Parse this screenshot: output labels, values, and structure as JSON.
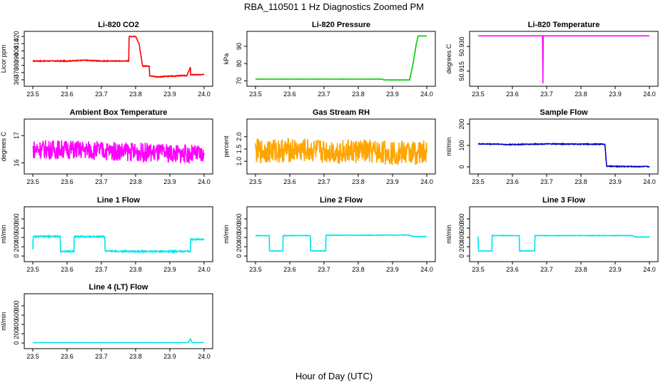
{
  "figure": {
    "title": "RBA_110501  1 Hz Diagnostics Zoomed PM",
    "xlabel": "Hour of Day (UTC)"
  },
  "chart_data": [
    {
      "type": "line",
      "title": "Li-820 CO2",
      "ylabel": "Licor ppm",
      "color": "#ff0000",
      "xlim": [
        23.5,
        24.0
      ],
      "ylim": [
        355,
        423
      ],
      "yticks": [
        360,
        370,
        380,
        390,
        400,
        410,
        420
      ],
      "xticks": [
        23.5,
        23.6,
        23.7,
        23.8,
        23.9,
        24.0
      ],
      "noise": 0.6,
      "x": [
        23.5,
        23.6,
        23.65,
        23.7,
        23.75,
        23.78,
        23.781,
        23.8,
        23.81,
        23.82,
        23.821,
        23.84,
        23.841,
        23.86,
        23.9,
        23.95,
        23.96,
        23.961,
        23.962,
        23.98,
        24.0
      ],
      "y": [
        386,
        386,
        387,
        386,
        386,
        386,
        420,
        420,
        410,
        380,
        379,
        379,
        366,
        364,
        365,
        366,
        377,
        366,
        367,
        367,
        367
      ]
    },
    {
      "type": "line",
      "title": "Li-820 Pressure",
      "ylabel": "kPa",
      "color": "#00cc00",
      "xlim": [
        23.5,
        24.0
      ],
      "ylim": [
        68.5,
        97
      ],
      "yticks": [
        70,
        80,
        90
      ],
      "xticks": [
        23.5,
        23.6,
        23.7,
        23.8,
        23.9,
        24.0
      ],
      "noise": 0.05,
      "x": [
        23.5,
        23.87,
        23.875,
        23.95,
        23.96,
        23.97,
        23.975,
        23.98,
        24.0
      ],
      "y": [
        71,
        71,
        70.5,
        70.5,
        80,
        92,
        96,
        96,
        96
      ]
    },
    {
      "type": "line",
      "title": "Li-820 Temperature",
      "ylabel": "degrees C",
      "color": "#ff00ff",
      "xlim": [
        23.5,
        24.0
      ],
      "ylim": [
        50.9075,
        50.9375
      ],
      "yticks": [
        50.915,
        50.93
      ],
      "xticks": [
        23.5,
        23.6,
        23.7,
        23.8,
        23.9,
        24.0
      ],
      "noise": 0,
      "x": [
        23.5,
        23.688,
        23.689,
        23.69,
        24.0
      ],
      "y": [
        50.9365,
        50.9365,
        50.9075,
        50.9365,
        50.9365
      ]
    },
    {
      "type": "line",
      "title": "Ambient Box Temperature",
      "ylabel": "degrees C",
      "color": "#ff00ff",
      "xlim": [
        23.5,
        24.0
      ],
      "ylim": [
        15.7,
        17.5
      ],
      "yticks": [
        16.0,
        17.0
      ],
      "xticks": [
        23.5,
        23.6,
        23.7,
        23.8,
        23.9,
        24.0
      ],
      "noise": 0.35,
      "x": [
        23.5,
        23.6,
        23.7,
        23.8,
        23.9,
        24.0
      ],
      "y": [
        16.5,
        16.5,
        16.45,
        16.4,
        16.35,
        16.3
      ]
    },
    {
      "type": "line",
      "title": "Gas Stream RH",
      "ylabel": "percent",
      "color": "#ffa500",
      "xlim": [
        23.5,
        24.0
      ],
      "ylim": [
        0.6,
        2.6
      ],
      "yticks": [
        1.0,
        1.5,
        2.0
      ],
      "xticks": [
        23.5,
        23.6,
        23.7,
        23.8,
        23.9,
        24.0
      ],
      "noise": 0.5,
      "x": [
        23.5,
        23.6,
        23.7,
        23.8,
        23.9,
        24.0
      ],
      "y": [
        1.4,
        1.45,
        1.4,
        1.4,
        1.35,
        1.35
      ]
    },
    {
      "type": "line",
      "title": "Sample Flow",
      "ylabel": "ml/min",
      "color": "#0000cc",
      "xlim": [
        23.5,
        24.0
      ],
      "ylim": [
        -20,
        210
      ],
      "yticks": [
        0,
        100,
        200
      ],
      "xticks": [
        23.5,
        23.6,
        23.7,
        23.8,
        23.9,
        24.0
      ],
      "noise": 2,
      "x": [
        23.5,
        23.57,
        23.58,
        23.7,
        23.8,
        23.87,
        23.875,
        23.9,
        24.0
      ],
      "y": [
        107,
        106,
        104,
        107,
        106,
        106,
        3,
        2,
        1
      ]
    },
    {
      "type": "line",
      "title": "Line 1 Flow",
      "ylabel": "ml/min",
      "color": "#00e5ee",
      "xlim": [
        23.5,
        24.0
      ],
      "ylim": [
        -60,
        1000
      ],
      "yticks": [
        0,
        200,
        400,
        600,
        800
      ],
      "xticks": [
        23.5,
        23.6,
        23.7,
        23.8,
        23.9,
        24.0
      ],
      "noise": 15,
      "x": [
        23.5,
        23.501,
        23.58,
        23.581,
        23.62,
        23.621,
        23.71,
        23.711,
        23.75,
        23.96,
        23.961,
        24.0
      ],
      "y": [
        150,
        420,
        420,
        100,
        100,
        420,
        420,
        110,
        100,
        100,
        360,
        360
      ]
    },
    {
      "type": "line",
      "title": "Line 2 Flow",
      "ylabel": "ml/min",
      "color": "#00e5ee",
      "xlim": [
        23.5,
        24.0
      ],
      "ylim": [
        -60,
        1000
      ],
      "yticks": [
        0,
        200,
        400,
        600,
        800
      ],
      "xticks": [
        23.5,
        23.6,
        23.7,
        23.8,
        23.9,
        24.0
      ],
      "noise": 5,
      "x": [
        23.5,
        23.54,
        23.541,
        23.58,
        23.581,
        23.66,
        23.661,
        23.705,
        23.706,
        23.95,
        23.96,
        24.0
      ],
      "y": [
        440,
        440,
        110,
        110,
        440,
        440,
        110,
        110,
        450,
        450,
        420,
        420
      ]
    },
    {
      "type": "line",
      "title": "Line 3 Flow",
      "ylabel": "ml/min",
      "color": "#00e5ee",
      "xlim": [
        23.5,
        24.0
      ],
      "ylim": [
        -60,
        1000
      ],
      "yticks": [
        0,
        200,
        400,
        600,
        800
      ],
      "xticks": [
        23.5,
        23.6,
        23.7,
        23.8,
        23.9,
        24.0
      ],
      "noise": 5,
      "x": [
        23.5,
        23.501,
        23.54,
        23.541,
        23.62,
        23.621,
        23.665,
        23.666,
        23.95,
        23.96,
        24.0
      ],
      "y": [
        420,
        110,
        110,
        440,
        440,
        110,
        110,
        440,
        440,
        410,
        410
      ]
    },
    {
      "type": "line",
      "title": "Line 4 (LT) Flow",
      "ylabel": "ml/min",
      "color": "#00e5ee",
      "xlim": [
        23.5,
        24.0
      ],
      "ylim": [
        -60,
        1000
      ],
      "yticks": [
        0,
        200,
        400,
        600,
        800
      ],
      "xticks": [
        23.5,
        23.6,
        23.7,
        23.8,
        23.9,
        24.0
      ],
      "noise": 2,
      "x": [
        23.5,
        23.95,
        23.955,
        23.96,
        23.965,
        24.0
      ],
      "y": [
        8,
        8,
        20,
        90,
        10,
        10
      ]
    }
  ]
}
